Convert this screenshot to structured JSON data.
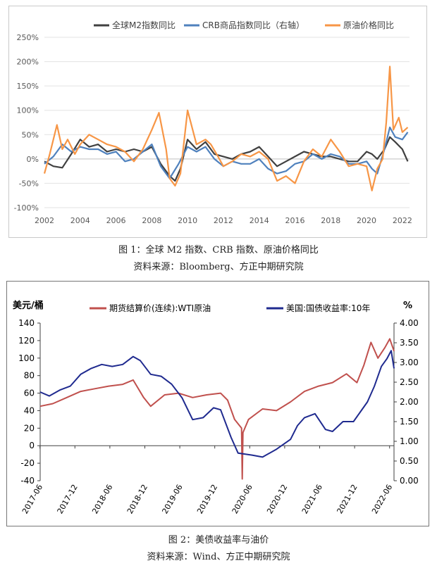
{
  "figure1": {
    "caption": "图 1：全球 M2 指数、CRB 指数、原油价格同比",
    "source": "资料来源：Bloomberg、方正中期研究院",
    "legend": [
      {
        "name": "全球M2指数同比",
        "color": "#404040"
      },
      {
        "name": "CRB商品指数同比（右轴）",
        "color": "#4f81bd"
      },
      {
        "name": "原油价格同比",
        "color": "#f79646"
      }
    ]
  },
  "figure2": {
    "caption": "图 2：美债收益率与油价",
    "source": "资料来源：Wind、方正中期研究院",
    "left_unit": "美元/桶",
    "right_unit": "%",
    "legend": [
      {
        "name": "期货结算价(连续):WTI原油",
        "color": "#c0504d"
      },
      {
        "name": "美国:国债收益率:10年",
        "color": "#1f2a8f"
      }
    ]
  },
  "chart_data": [
    {
      "type": "line",
      "ylim": [
        -100,
        250
      ],
      "y_ticks": [
        "-100%",
        "-50%",
        "0%",
        "50%",
        "100%",
        "150%",
        "200%",
        "250%"
      ],
      "x_ticks": [
        "2002",
        "2004",
        "2006",
        "2008",
        "2010",
        "2012",
        "2014",
        "2016",
        "2018",
        "2020",
        "2022"
      ],
      "xlim": [
        2002,
        2022.4
      ],
      "grid": "horizontal",
      "legend_position": "top",
      "series": [
        {
          "name": "全球M2指数同比",
          "color": "#404040",
          "x": [
            2002,
            2002.5,
            2003,
            2003.5,
            2004,
            2004.5,
            2005,
            2005.5,
            2006,
            2006.5,
            2007,
            2007.5,
            2008,
            2008.5,
            2009,
            2009.3,
            2009.6,
            2010,
            2010.5,
            2011,
            2011.5,
            2012,
            2012.5,
            2013,
            2013.5,
            2014,
            2014.5,
            2015,
            2015.5,
            2016,
            2016.5,
            2017,
            2017.5,
            2018,
            2018.5,
            2019,
            2019.5,
            2020,
            2020.3,
            2020.6,
            2021,
            2021.3,
            2021.6,
            2022,
            2022.3
          ],
          "y": [
            -5,
            -15,
            -18,
            10,
            40,
            25,
            30,
            15,
            20,
            15,
            20,
            15,
            25,
            -10,
            -35,
            -45,
            -20,
            40,
            20,
            35,
            10,
            5,
            0,
            10,
            15,
            25,
            5,
            -15,
            -5,
            5,
            15,
            10,
            5,
            5,
            0,
            -5,
            -5,
            15,
            10,
            0,
            20,
            45,
            35,
            20,
            -5
          ]
        },
        {
          "name": "CRB商品指数同比（右轴）",
          "color": "#4f81bd",
          "x": [
            2002,
            2002.5,
            2003,
            2003.5,
            2004,
            2004.5,
            2005,
            2005.5,
            2006,
            2006.5,
            2007,
            2007.5,
            2008,
            2008.5,
            2009,
            2009.5,
            2010,
            2010.5,
            2011,
            2011.5,
            2012,
            2012.5,
            2013,
            2013.5,
            2014,
            2014.5,
            2015,
            2015.5,
            2016,
            2016.5,
            2017,
            2017.5,
            2018,
            2018.5,
            2019,
            2019.5,
            2020,
            2020.3,
            2020.6,
            2021,
            2021.3,
            2021.6,
            2022,
            2022.3
          ],
          "y": [
            -10,
            5,
            30,
            15,
            25,
            20,
            20,
            10,
            15,
            -5,
            0,
            15,
            30,
            -15,
            -40,
            -10,
            25,
            15,
            25,
            0,
            -15,
            -5,
            -10,
            -10,
            0,
            -20,
            -30,
            -25,
            -10,
            -5,
            10,
            0,
            10,
            5,
            -10,
            -10,
            -5,
            -20,
            -30,
            20,
            65,
            45,
            40,
            55
          ]
        },
        {
          "name": "原油价格同比",
          "color": "#f79646",
          "x": [
            2002,
            2002.3,
            2002.7,
            2003,
            2003.3,
            2003.7,
            2004,
            2004.5,
            2005,
            2005.5,
            2006,
            2006.5,
            2007,
            2007.5,
            2008,
            2008.4,
            2008.8,
            2009,
            2009.3,
            2009.6,
            2010,
            2010.5,
            2011,
            2011.3,
            2011.7,
            2012,
            2012.5,
            2013,
            2013.5,
            2014,
            2014.5,
            2015,
            2015.5,
            2016,
            2016.5,
            2017,
            2017.5,
            2018,
            2018.5,
            2019,
            2019.5,
            2020,
            2020.3,
            2020.6,
            2020.9,
            2021.1,
            2021.3,
            2021.5,
            2021.8,
            2022,
            2022.3
          ],
          "y": [
            -30,
            10,
            70,
            20,
            40,
            10,
            30,
            50,
            40,
            30,
            25,
            15,
            -5,
            20,
            60,
            95,
            20,
            -40,
            -55,
            -30,
            100,
            30,
            40,
            30,
            5,
            -15,
            -5,
            10,
            5,
            15,
            0,
            -45,
            -35,
            -50,
            -5,
            20,
            5,
            40,
            15,
            -15,
            -10,
            -15,
            -65,
            -20,
            0,
            75,
            190,
            60,
            85,
            55,
            65
          ]
        }
      ]
    },
    {
      "type": "line",
      "ylim": [
        -40,
        140
      ],
      "y_ticks": [
        "-40",
        "-20",
        "0",
        "20",
        "40",
        "60",
        "80",
        "100",
        "120",
        "140"
      ],
      "y2lim": [
        0,
        4
      ],
      "y2_ticks": [
        "0.00",
        "0.50",
        "1.00",
        "1.50",
        "2.00",
        "2.50",
        "3.00",
        "3.50",
        "4.00"
      ],
      "x_ticks": [
        "2017-06",
        "2017-12",
        "2018-06",
        "2018-12",
        "2019-06",
        "2019-12",
        "2020-06",
        "2020-12",
        "2021-06",
        "2021-12",
        "2022-06"
      ],
      "xlim": [
        2017.42,
        2022.48
      ],
      "legend_position": "top",
      "series": [
        {
          "name": "期货结算价(连续):WTI原油",
          "color": "#c0504d",
          "axis": "left",
          "x": [
            2017.42,
            2017.6,
            2017.8,
            2018,
            2018.2,
            2018.4,
            2018.6,
            2018.75,
            2018.9,
            2019,
            2019.2,
            2019.4,
            2019.6,
            2019.8,
            2020,
            2020.1,
            2020.2,
            2020.3,
            2020.31,
            2020.32,
            2020.4,
            2020.6,
            2020.8,
            2021,
            2021.2,
            2021.4,
            2021.6,
            2021.8,
            2021.95,
            2022.05,
            2022.15,
            2022.25,
            2022.35,
            2022.42,
            2022.48
          ],
          "y": [
            45,
            48,
            55,
            62,
            65,
            68,
            70,
            75,
            55,
            45,
            58,
            60,
            55,
            58,
            60,
            52,
            30,
            20,
            -38,
            15,
            30,
            42,
            40,
            50,
            62,
            68,
            72,
            82,
            72,
            92,
            118,
            100,
            112,
            122,
            108
          ]
        },
        {
          "name": "美国:国债收益率:10年",
          "color": "#1f2a8f",
          "axis": "right",
          "x": [
            2017.42,
            2017.55,
            2017.7,
            2017.85,
            2018,
            2018.15,
            2018.3,
            2018.45,
            2018.6,
            2018.75,
            2018.85,
            2019,
            2019.15,
            2019.3,
            2019.45,
            2019.6,
            2019.75,
            2019.9,
            2020,
            2020.15,
            2020.25,
            2020.45,
            2020.6,
            2020.8,
            2021,
            2021.1,
            2021.2,
            2021.35,
            2021.5,
            2021.6,
            2021.75,
            2021.9,
            2022,
            2022.1,
            2022.2,
            2022.3,
            2022.38,
            2022.44,
            2022.48
          ],
          "y": [
            2.25,
            2.15,
            2.3,
            2.4,
            2.7,
            2.85,
            2.95,
            2.9,
            2.95,
            3.15,
            3.05,
            2.7,
            2.65,
            2.45,
            2.1,
            1.55,
            1.6,
            1.85,
            1.8,
            1.1,
            0.7,
            0.65,
            0.6,
            0.8,
            1.05,
            1.4,
            1.6,
            1.7,
            1.3,
            1.25,
            1.5,
            1.5,
            1.75,
            2.0,
            2.4,
            2.9,
            3.1,
            3.3,
            2.85
          ]
        }
      ]
    }
  ]
}
